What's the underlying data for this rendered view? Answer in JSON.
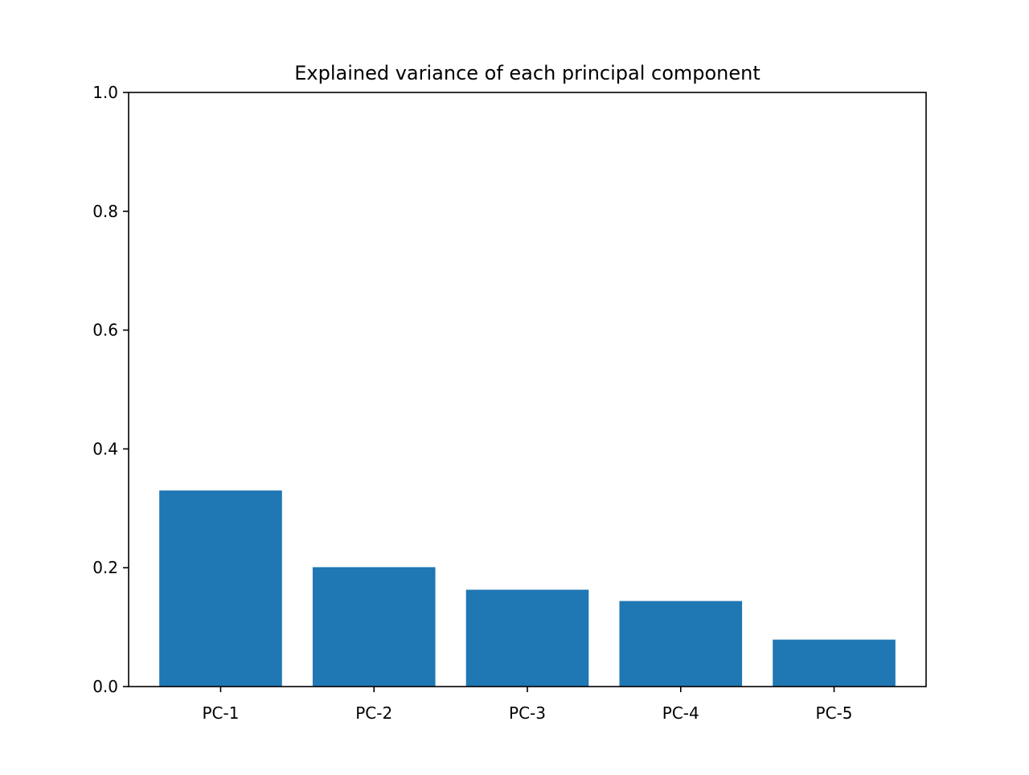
{
  "chart_data": {
    "type": "bar",
    "title": "Explained variance of each principal component",
    "xlabel": "",
    "ylabel": "",
    "categories": [
      "PC-1",
      "PC-2",
      "PC-3",
      "PC-4",
      "PC-5"
    ],
    "values": [
      0.33,
      0.201,
      0.163,
      0.144,
      0.079
    ],
    "ylim": [
      0.0,
      1.0
    ],
    "yticks": [
      "0.0",
      "0.2",
      "0.4",
      "0.6",
      "0.8",
      "1.0"
    ],
    "grid": false,
    "legend": "none",
    "bar_color": "#1f77b4"
  }
}
